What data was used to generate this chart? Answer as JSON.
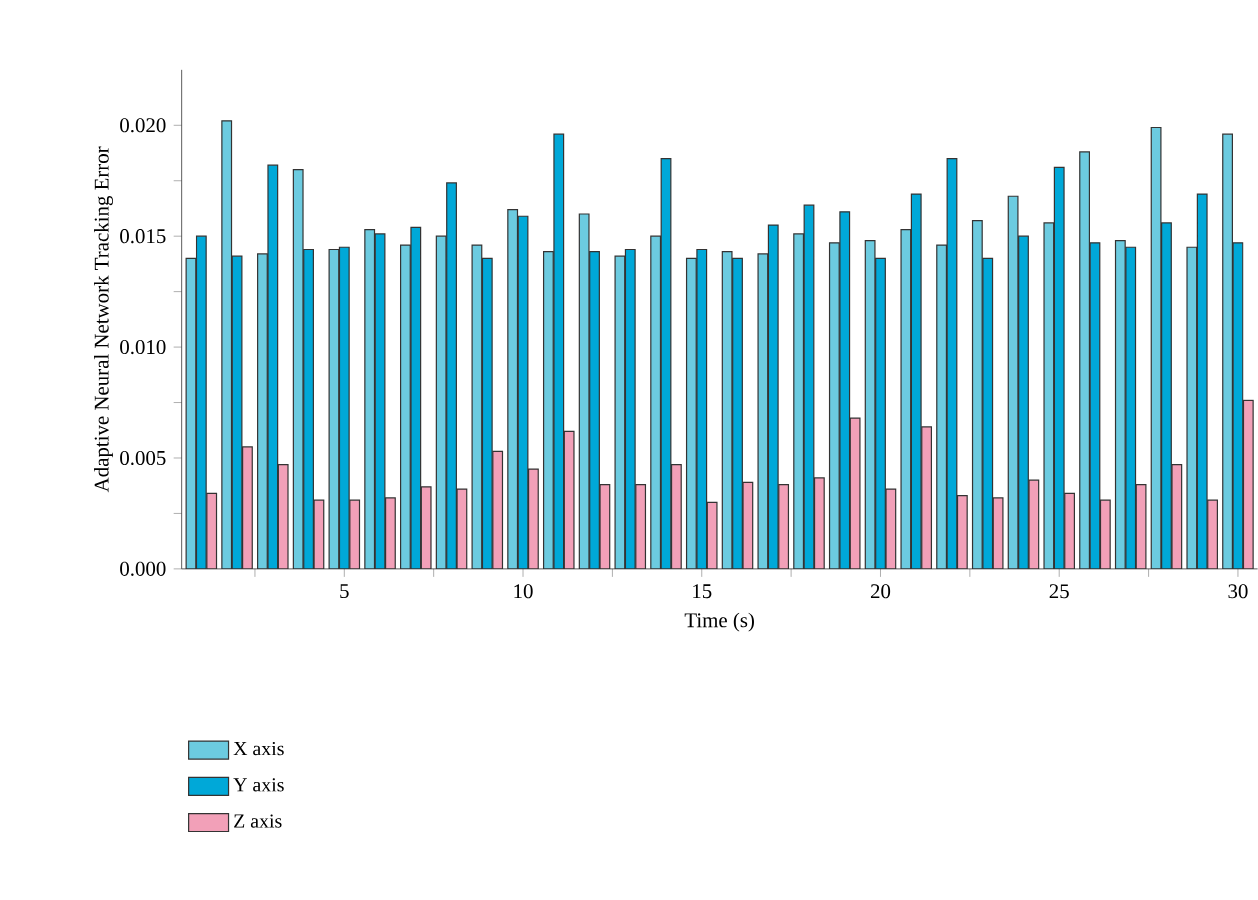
{
  "chart_data": {
    "type": "bar",
    "xlabel": "Time (s)",
    "ylabel": "Adaptive Neural Network Tracking Error",
    "x": [
      1,
      2,
      3,
      4,
      5,
      6,
      7,
      8,
      9,
      10,
      11,
      12,
      13,
      14,
      15,
      16,
      17,
      18,
      19,
      20,
      21,
      22,
      23,
      24,
      25,
      26,
      27,
      28,
      29,
      30
    ],
    "series": [
      {
        "name": "X axis",
        "color": "#6ccbe0",
        "values": [
          0.014,
          0.0202,
          0.0142,
          0.018,
          0.0144,
          0.0153,
          0.0146,
          0.015,
          0.0146,
          0.0162,
          0.0143,
          0.016,
          0.0141,
          0.015,
          0.014,
          0.0143,
          0.0142,
          0.0151,
          0.0147,
          0.0148,
          0.0153,
          0.0146,
          0.0157,
          0.0168,
          0.0156,
          0.0188,
          0.0148,
          0.0199,
          0.0145,
          0.0196
        ]
      },
      {
        "name": "Y axis",
        "color": "#00a8d8",
        "values": [
          0.015,
          0.0141,
          0.0182,
          0.0144,
          0.0145,
          0.0151,
          0.0154,
          0.0174,
          0.014,
          0.0159,
          0.0196,
          0.0143,
          0.0144,
          0.0185,
          0.0144,
          0.014,
          0.0155,
          0.0164,
          0.0161,
          0.014,
          0.0169,
          0.0185,
          0.014,
          0.015,
          0.0181,
          0.0147,
          0.0145,
          0.0156,
          0.0169,
          0.0147
        ]
      },
      {
        "name": "Z axis",
        "color": "#f2a0b8",
        "values": [
          0.0034,
          0.0055,
          0.0047,
          0.0031,
          0.0031,
          0.0032,
          0.0037,
          0.0036,
          0.0053,
          0.0045,
          0.0062,
          0.0038,
          0.0038,
          0.0047,
          0.003,
          0.0039,
          0.0038,
          0.0041,
          0.0068,
          0.0036,
          0.0064,
          0.0033,
          0.0032,
          0.004,
          0.0034,
          0.0031,
          0.0038,
          0.0047,
          0.0031,
          0.0076
        ]
      }
    ],
    "xlim": [
      0.45,
      30.55
    ],
    "xticks": [
      {
        "value": 2.5,
        "label": null
      },
      5,
      {
        "value": 7.5,
        "label": null
      },
      10,
      {
        "value": 12.5,
        "label": null
      },
      15,
      {
        "value": 17.5,
        "label": null
      },
      20,
      {
        "value": 22.5,
        "label": null
      },
      25,
      {
        "value": 27.5,
        "label": null
      },
      30
    ],
    "ylim": [
      0,
      0.0225
    ],
    "yticks": [
      {
        "value": 0,
        "label": "0.000"
      },
      {
        "value": 0.0025,
        "label": null
      },
      {
        "value": 0.005,
        "label": "0.005"
      },
      {
        "value": 0.0075,
        "label": null
      },
      {
        "value": 0.01,
        "label": "0.010"
      },
      {
        "value": 0.0125,
        "label": null
      },
      {
        "value": 0.015,
        "label": "0.015"
      },
      {
        "value": 0.0175,
        "label": null
      },
      {
        "value": 0.02,
        "label": "0.020"
      }
    ],
    "legend": "bottom left"
  }
}
